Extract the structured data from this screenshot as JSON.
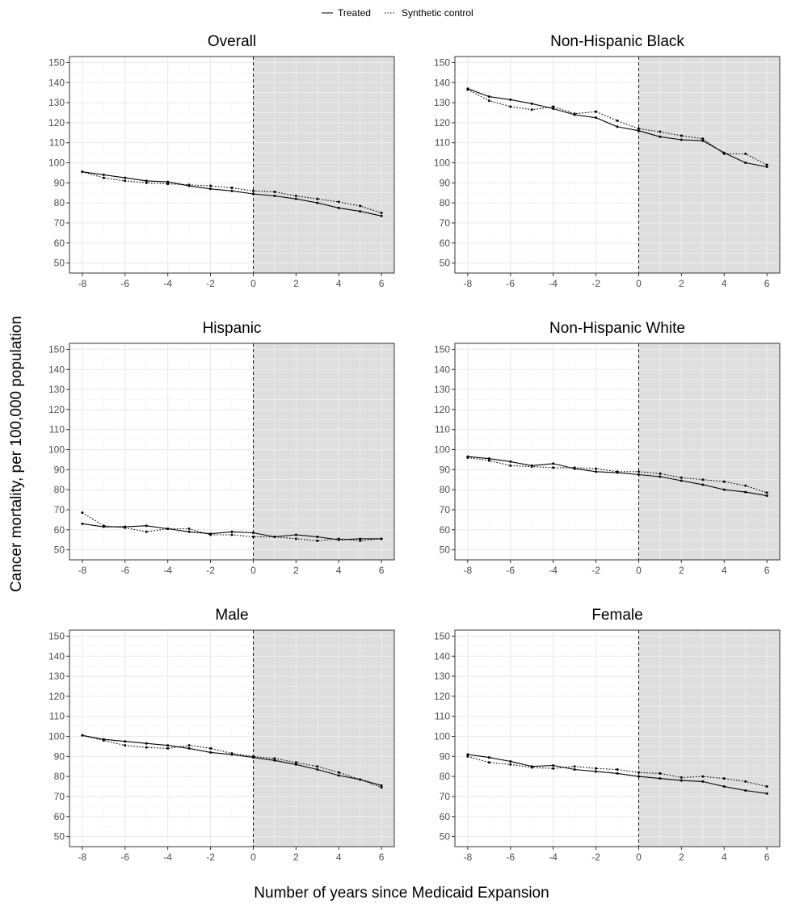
{
  "legend": {
    "treated_label": "Treated",
    "synthetic_label": "Synthetic control"
  },
  "ylabel": "Cancer mortality, per 100,000 population",
  "xlabel": "Number of years since Medicaid Expansion",
  "colors": {
    "shade": "#dedede",
    "panel_border": "#333333",
    "line": "#000000",
    "major_grid": "#ebebeb",
    "minor_grid": "#f5f5f5",
    "vline": "#000000"
  },
  "chart_data": [
    {
      "type": "line",
      "title": "Overall",
      "x": [
        -8,
        -7,
        -6,
        -5,
        -4,
        -3,
        -2,
        -1,
        0,
        1,
        2,
        3,
        4,
        5,
        6
      ],
      "xlim": [
        -8.6,
        6.6
      ],
      "ylim": [
        45,
        153
      ],
      "xticks": [
        -8,
        -6,
        -4,
        -2,
        0,
        2,
        4,
        6
      ],
      "yticks": [
        50,
        60,
        70,
        80,
        90,
        100,
        110,
        120,
        130,
        140,
        150
      ],
      "grid": true,
      "shaded_region": [
        0,
        6.6
      ],
      "vline": 0,
      "series": [
        {
          "name": "Treated",
          "style": "solid",
          "values": [
            95.5,
            94,
            92.5,
            91,
            90.5,
            88.5,
            87,
            86,
            84.5,
            83.5,
            82,
            80,
            77.5,
            75.8,
            73.5
          ]
        },
        {
          "name": "Synthetic control",
          "style": "dotted",
          "values": [
            95.5,
            92.5,
            91,
            90,
            89.5,
            89,
            88.5,
            87.5,
            86,
            85.5,
            83.5,
            82,
            80.5,
            78.5,
            75
          ]
        }
      ]
    },
    {
      "type": "line",
      "title": "Non-Hispanic Black",
      "x": [
        -8,
        -7,
        -6,
        -5,
        -4,
        -3,
        -2,
        -1,
        0,
        1,
        2,
        3,
        4,
        5,
        6
      ],
      "xlim": [
        -8.6,
        6.6
      ],
      "ylim": [
        45,
        153
      ],
      "xticks": [
        -8,
        -6,
        -4,
        -2,
        0,
        2,
        4,
        6
      ],
      "yticks": [
        50,
        60,
        70,
        80,
        90,
        100,
        110,
        120,
        130,
        140,
        150
      ],
      "grid": true,
      "shaded_region": [
        0,
        6.6
      ],
      "vline": 0,
      "series": [
        {
          "name": "Treated",
          "style": "solid",
          "values": [
            137,
            133,
            131.5,
            129.5,
            127,
            124,
            122.5,
            118,
            116,
            113,
            111.5,
            111,
            105,
            100,
            98
          ]
        },
        {
          "name": "Synthetic control",
          "style": "dotted",
          "values": [
            136.5,
            131,
            128,
            126.5,
            128,
            124.5,
            125.5,
            121,
            117,
            115.5,
            113.5,
            112,
            104.5,
            104.5,
            99
          ]
        }
      ]
    },
    {
      "type": "line",
      "title": "Hispanic",
      "x": [
        -8,
        -7,
        -6,
        -5,
        -4,
        -3,
        -2,
        -1,
        0,
        1,
        2,
        3,
        4,
        5,
        6
      ],
      "xlim": [
        -8.6,
        6.6
      ],
      "ylim": [
        45,
        153
      ],
      "xticks": [
        -8,
        -6,
        -4,
        -2,
        0,
        2,
        4,
        6
      ],
      "yticks": [
        50,
        60,
        70,
        80,
        90,
        100,
        110,
        120,
        130,
        140,
        150
      ],
      "grid": true,
      "shaded_region": [
        0,
        6.6
      ],
      "vline": 0,
      "series": [
        {
          "name": "Treated",
          "style": "solid",
          "values": [
            63,
            61.5,
            61.5,
            62,
            60.5,
            59,
            58,
            59,
            58.5,
            56.5,
            57.5,
            56.5,
            55,
            55.5,
            55.5
          ]
        },
        {
          "name": "Synthetic control",
          "style": "dotted",
          "values": [
            68.5,
            62,
            61,
            59,
            60.5,
            60.5,
            57.5,
            57.5,
            56.5,
            56.5,
            55.5,
            54.5,
            55.5,
            54.5,
            55.5
          ]
        }
      ]
    },
    {
      "type": "line",
      "title": "Non-Hispanic White",
      "x": [
        -8,
        -7,
        -6,
        -5,
        -4,
        -3,
        -2,
        -1,
        0,
        1,
        2,
        3,
        4,
        5,
        6
      ],
      "xlim": [
        -8.6,
        6.6
      ],
      "ylim": [
        45,
        153
      ],
      "xticks": [
        -8,
        -6,
        -4,
        -2,
        0,
        2,
        4,
        6
      ],
      "yticks": [
        50,
        60,
        70,
        80,
        90,
        100,
        110,
        120,
        130,
        140,
        150
      ],
      "grid": true,
      "shaded_region": [
        0,
        6.6
      ],
      "vline": 0,
      "series": [
        {
          "name": "Treated",
          "style": "solid",
          "values": [
            96.5,
            95.5,
            94,
            92,
            93,
            90.5,
            89,
            88.5,
            87.5,
            86.5,
            84.5,
            82.5,
            80,
            78.8,
            77
          ]
        },
        {
          "name": "Synthetic control",
          "style": "dotted",
          "values": [
            96,
            94.5,
            92,
            91.5,
            91,
            91,
            90.5,
            89,
            89,
            88,
            86,
            85,
            84,
            82,
            78.5
          ]
        }
      ]
    },
    {
      "type": "line",
      "title": "Male",
      "x": [
        -8,
        -7,
        -6,
        -5,
        -4,
        -3,
        -2,
        -1,
        0,
        1,
        2,
        3,
        4,
        5,
        6
      ],
      "xlim": [
        -8.6,
        6.6
      ],
      "ylim": [
        45,
        153
      ],
      "xticks": [
        -8,
        -6,
        -4,
        -2,
        0,
        2,
        4,
        6
      ],
      "yticks": [
        50,
        60,
        70,
        80,
        90,
        100,
        110,
        120,
        130,
        140,
        150
      ],
      "grid": true,
      "shaded_region": [
        0,
        6.6
      ],
      "vline": 0,
      "series": [
        {
          "name": "Treated",
          "style": "solid",
          "values": [
            100.5,
            98.5,
            97.5,
            96.5,
            95.5,
            94,
            92,
            91,
            89.5,
            88,
            86,
            83.5,
            80.5,
            78.5,
            75.5
          ]
        },
        {
          "name": "Synthetic control",
          "style": "dotted",
          "values": [
            100.5,
            98,
            95.5,
            94.5,
            94,
            95.5,
            94,
            91.5,
            90,
            89,
            87,
            85,
            82,
            78.5,
            74.5
          ]
        }
      ]
    },
    {
      "type": "line",
      "title": "Female",
      "x": [
        -8,
        -7,
        -6,
        -5,
        -4,
        -3,
        -2,
        -1,
        0,
        1,
        2,
        3,
        4,
        5,
        6
      ],
      "xlim": [
        -8.6,
        6.6
      ],
      "ylim": [
        45,
        153
      ],
      "xticks": [
        -8,
        -6,
        -4,
        -2,
        0,
        2,
        4,
        6
      ],
      "yticks": [
        50,
        60,
        70,
        80,
        90,
        100,
        110,
        120,
        130,
        140,
        150
      ],
      "grid": true,
      "shaded_region": [
        0,
        6.6
      ],
      "vline": 0,
      "series": [
        {
          "name": "Treated",
          "style": "solid",
          "values": [
            91,
            89.5,
            87.5,
            85,
            85.5,
            83.5,
            82.5,
            81.5,
            80,
            79,
            78,
            77.5,
            75,
            73,
            71.5
          ]
        },
        {
          "name": "Synthetic control",
          "style": "dotted",
          "values": [
            90,
            87,
            86,
            84.5,
            84,
            85,
            84,
            83.5,
            82,
            81.5,
            79.5,
            80,
            79,
            77.5,
            75
          ]
        }
      ]
    }
  ]
}
